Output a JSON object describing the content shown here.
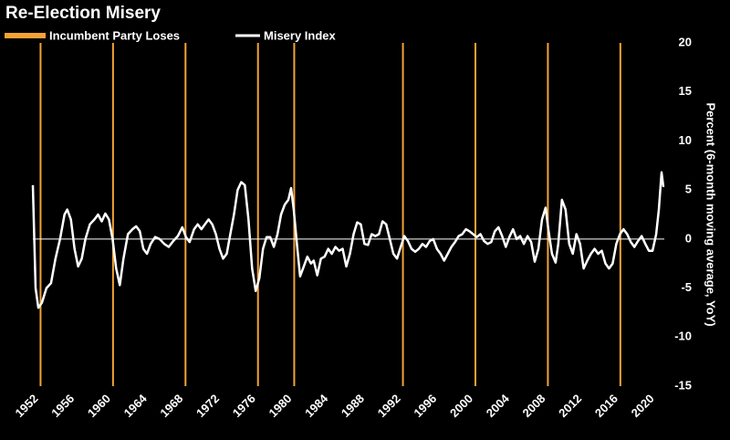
{
  "chart_data": {
    "type": "line",
    "title": "Re-Election Misery",
    "y_label": "Percent (6-month moving average, YoY)",
    "xlim": [
      1952,
      2021.7
    ],
    "xticks": [
      1952,
      1956,
      1960,
      1964,
      1968,
      1972,
      1976,
      1980,
      1984,
      1988,
      1992,
      1996,
      2000,
      2004,
      2008,
      2012,
      2016,
      2020
    ],
    "ylim": [
      -15,
      20
    ],
    "yticks": [
      -15,
      -10,
      -5,
      0,
      5,
      10,
      15,
      20
    ],
    "zero_line": true,
    "events": {
      "name": "Incumbent Party Loses",
      "color": "#f5a236",
      "x": [
        1952.85,
        1960.85,
        1968.85,
        1976.85,
        1980.85,
        1992.85,
        2000.85,
        2008.85,
        2016.85
      ]
    },
    "series": [
      {
        "name": "Misery Index",
        "color": "#ffffff",
        "x": [
          1952.0,
          1952.3,
          1952.6,
          1953.0,
          1953.5,
          1954.0,
          1954.5,
          1955.0,
          1955.5,
          1955.8,
          1956.2,
          1956.6,
          1957.0,
          1957.4,
          1957.8,
          1958.3,
          1958.8,
          1959.2,
          1959.6,
          1960.0,
          1960.4,
          1960.8,
          1961.2,
          1961.6,
          1962.0,
          1962.5,
          1963.0,
          1963.4,
          1963.8,
          1964.2,
          1964.6,
          1965.0,
          1965.5,
          1966.0,
          1966.5,
          1967.0,
          1967.5,
          1968.0,
          1968.5,
          1968.9,
          1969.3,
          1969.8,
          1970.2,
          1970.6,
          1971.0,
          1971.4,
          1971.8,
          1972.2,
          1972.6,
          1973.0,
          1973.4,
          1973.8,
          1974.2,
          1974.6,
          1975.0,
          1975.4,
          1975.8,
          1976.2,
          1976.6,
          1977.0,
          1977.4,
          1977.8,
          1978.2,
          1978.6,
          1979.0,
          1979.4,
          1979.8,
          1980.2,
          1980.5,
          1980.8,
          1981.2,
          1981.5,
          1981.9,
          1982.3,
          1982.7,
          1983.0,
          1983.4,
          1983.8,
          1984.2,
          1984.6,
          1985.0,
          1985.4,
          1985.8,
          1986.2,
          1986.6,
          1987.0,
          1987.4,
          1987.8,
          1988.2,
          1988.6,
          1989.0,
          1989.4,
          1989.8,
          1990.2,
          1990.6,
          1991.0,
          1991.4,
          1991.8,
          1992.2,
          1992.6,
          1993.0,
          1993.4,
          1993.8,
          1994.2,
          1994.6,
          1995.0,
          1995.4,
          1995.8,
          1996.2,
          1996.6,
          1997.0,
          1997.4,
          1997.8,
          1998.2,
          1998.6,
          1999.0,
          1999.4,
          1999.8,
          2000.2,
          2000.6,
          2001.0,
          2001.4,
          2001.8,
          2002.2,
          2002.6,
          2003.0,
          2003.4,
          2003.8,
          2004.2,
          2004.6,
          2005.0,
          2005.4,
          2005.8,
          2006.2,
          2006.6,
          2007.0,
          2007.4,
          2007.8,
          2008.2,
          2008.6,
          2008.9,
          2009.3,
          2009.7,
          2010.0,
          2010.4,
          2010.8,
          2011.2,
          2011.6,
          2012.0,
          2012.4,
          2012.8,
          2013.2,
          2013.6,
          2014.0,
          2014.4,
          2014.8,
          2015.2,
          2015.6,
          2016.0,
          2016.4,
          2016.8,
          2017.2,
          2017.6,
          2018.0,
          2018.4,
          2018.8,
          2019.2,
          2019.6,
          2020.0,
          2020.4,
          2020.8,
          2021.1,
          2021.4,
          2021.6
        ],
        "values": [
          5.5,
          -5,
          -7,
          -6.5,
          -5,
          -4.5,
          -2,
          0,
          2.5,
          3,
          2,
          -1,
          -2.8,
          -2,
          0,
          1.5,
          2,
          2.5,
          1.8,
          2.6,
          2,
          0,
          -3,
          -4.7,
          -2,
          0.5,
          1,
          1.3,
          0.8,
          -1,
          -1.5,
          -0.5,
          0.2,
          0,
          -0.5,
          -0.8,
          -0.2,
          0.3,
          1.2,
          0.2,
          -0.3,
          1,
          1.5,
          1,
          1.5,
          2,
          1.5,
          0.5,
          -1,
          -2,
          -1.5,
          0.5,
          2.5,
          5,
          5.8,
          5.5,
          2,
          -3,
          -5.3,
          -4,
          -1,
          0.2,
          0.2,
          -0.8,
          0.5,
          2.5,
          3.5,
          4,
          5.2,
          3,
          -1,
          -3.8,
          -2.8,
          -1.8,
          -2.5,
          -2.2,
          -3.7,
          -2,
          -1.8,
          -1,
          -1.5,
          -0.8,
          -1.2,
          -1,
          -2.8,
          -1.5,
          0.5,
          1.7,
          1.5,
          -0.5,
          -0.6,
          0.5,
          0.3,
          0.5,
          1.8,
          1.5,
          0,
          -1.5,
          -2,
          -0.8,
          0.3,
          -0.2,
          -1,
          -1.3,
          -1,
          -0.5,
          -0.8,
          -0.2,
          0,
          -1,
          -1.5,
          -2.2,
          -1.5,
          -0.8,
          -0.3,
          0.3,
          0.5,
          1,
          0.8,
          0.5,
          0.2,
          0.5,
          -0.2,
          -0.5,
          -0.3,
          0.8,
          1.2,
          0.3,
          -0.8,
          0.2,
          1,
          0,
          0.3,
          -0.5,
          0.3,
          -0.3,
          -2.3,
          -1,
          2,
          3.2,
          1,
          -1.5,
          -2.4,
          -0.5,
          4,
          3,
          -0.5,
          -1.5,
          0.5,
          -0.5,
          -3,
          -2.2,
          -1.5,
          -1,
          -1.5,
          -1.2,
          -2.5,
          -3,
          -2.5,
          -0.5,
          0.5,
          1,
          0.5,
          -0.3,
          -0.8,
          -0.2,
          0.3,
          -0.5,
          -1.2,
          -1.2,
          0.5,
          3,
          6.8,
          5.3
        ]
      }
    ]
  }
}
